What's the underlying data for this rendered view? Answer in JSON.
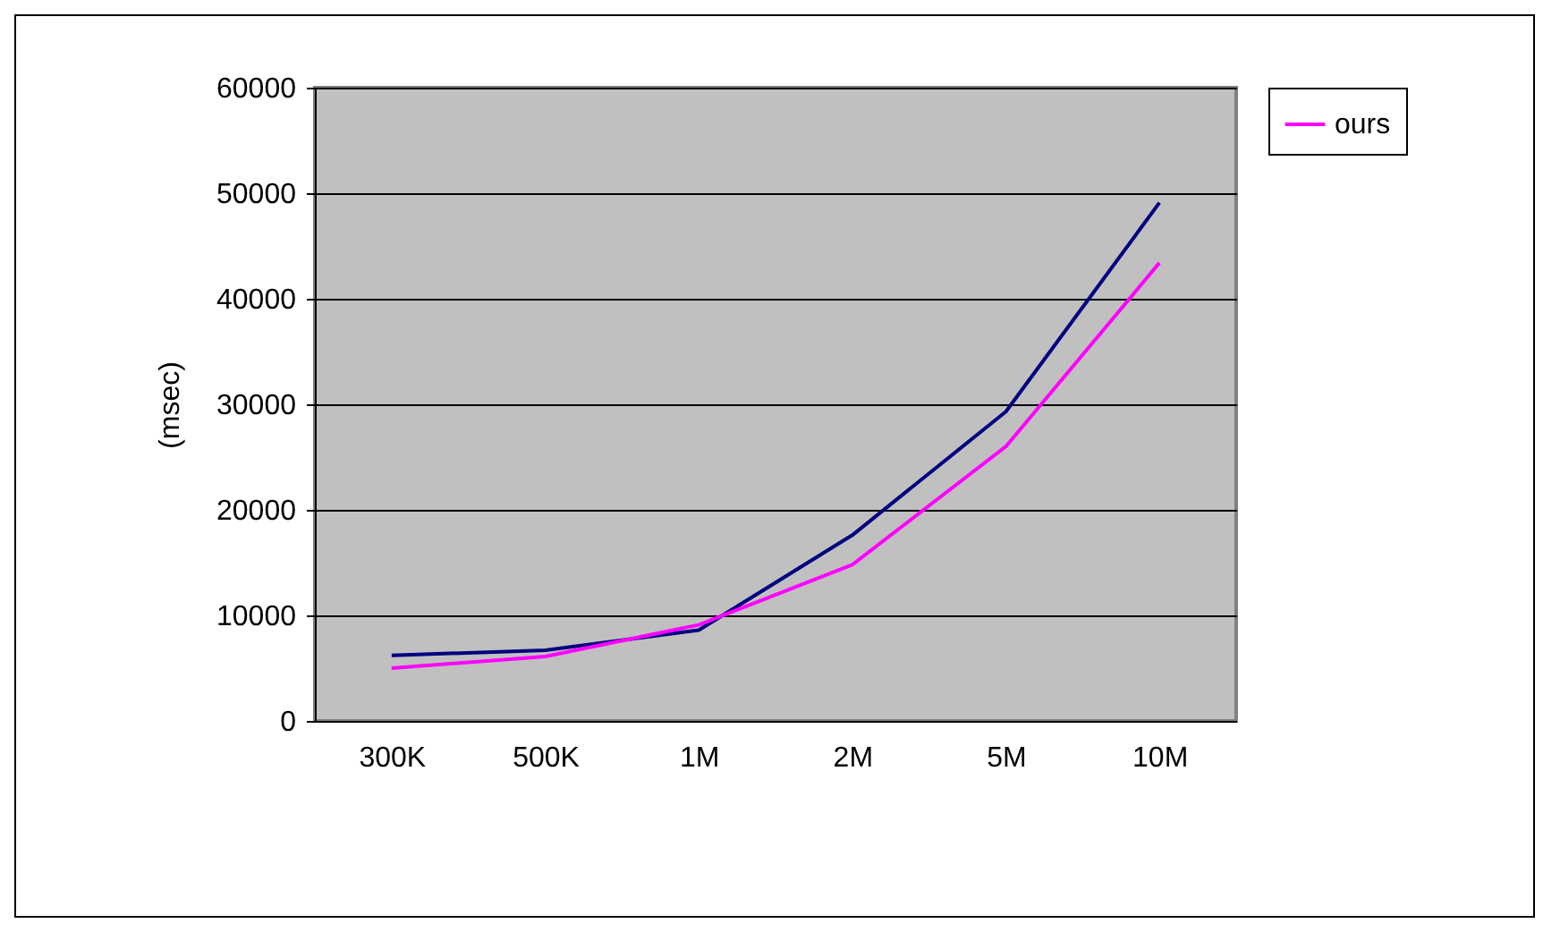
{
  "chart_data": {
    "type": "line",
    "ylabel": "(msec)",
    "categories": [
      "300K",
      "500K",
      "1M",
      "2M",
      "5M",
      "10M"
    ],
    "series": [
      {
        "color": "#000080",
        "values": [
          6200,
          6700,
          8600,
          17600,
          29300,
          49100
        ]
      },
      {
        "name": "ours",
        "color": "#ff00ff",
        "values": [
          5000,
          6100,
          9100,
          14800,
          26000,
          43400
        ]
      }
    ],
    "ylim": [
      0,
      60000
    ],
    "yticks": [
      0,
      10000,
      20000,
      30000,
      40000,
      50000,
      60000
    ],
    "grid": "y",
    "legend": "right",
    "marker": "none",
    "line_style": "solid"
  }
}
